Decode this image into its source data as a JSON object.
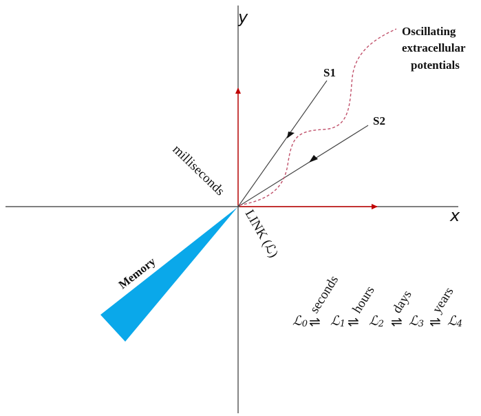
{
  "axes": {
    "x_label": "x",
    "y_label": "y"
  },
  "signals": {
    "s1": "S1",
    "s2": "S2"
  },
  "oscillating": {
    "line1": "Oscillating",
    "line2": "extracellular",
    "line3": "potentials"
  },
  "labels": {
    "milliseconds": "milliseconds",
    "link": "LINK (ℒ)",
    "memory": "Memory"
  },
  "sequence": {
    "symbol": "ℒ",
    "nodes": [
      "0",
      "1",
      "2",
      "3",
      "4"
    ],
    "transitions": [
      "seconds",
      "hours",
      "days",
      "years"
    ],
    "equilibrium": "⇌"
  },
  "colors": {
    "axis": "#333333",
    "red_axis": "#c00000",
    "memory_fill": "#0aa8ea",
    "dashed": "#c0506a",
    "lines": "#444444"
  }
}
